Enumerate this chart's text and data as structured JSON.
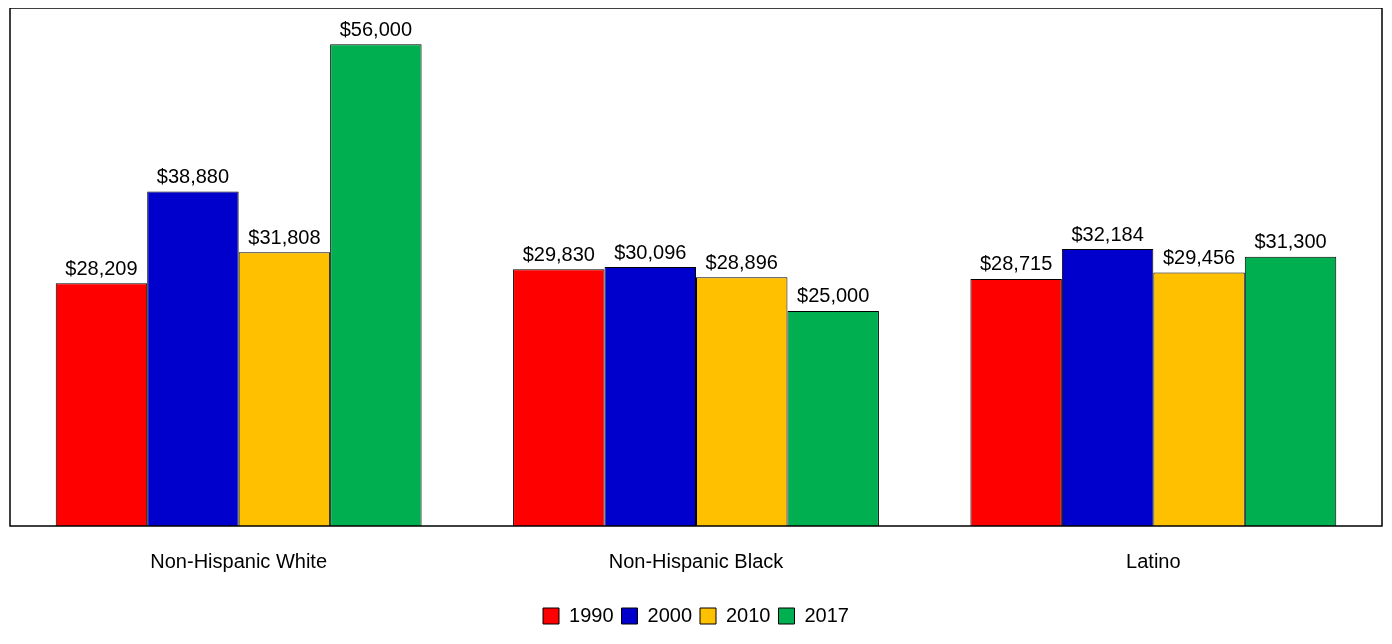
{
  "chart_data": {
    "type": "bar",
    "categories": [
      "Non-Hispanic White",
      "Non-Hispanic Black",
      "Latino"
    ],
    "series": [
      {
        "name": "1990",
        "color": "#ff0000",
        "values": [
          28209,
          29830,
          28715
        ],
        "value_labels": [
          "$28,209",
          "$29,830",
          "$28,715"
        ]
      },
      {
        "name": "2000",
        "color": "#0000cc",
        "values": [
          38880,
          30096,
          32184
        ],
        "value_labels": [
          "$38,880",
          "$30,096",
          "$32,184"
        ]
      },
      {
        "name": "2010",
        "color": "#ffc000",
        "values": [
          31808,
          28896,
          29456
        ],
        "value_labels": [
          "$31,808",
          "$28,896",
          "$29,456"
        ]
      },
      {
        "name": "2017",
        "color": "#00b050",
        "values": [
          56000,
          25000,
          31300
        ],
        "value_labels": [
          "$56,000",
          "$25,000",
          "$31,300"
        ]
      }
    ],
    "legend": "bottom",
    "grid": false,
    "tick_labels": "x"
  }
}
